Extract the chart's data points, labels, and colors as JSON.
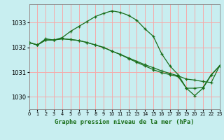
{
  "title": "Graphe pression niveau de la mer (hPa)",
  "background_color": "#c8eef0",
  "grid_color": "#f5aaaa",
  "line_color": "#1a6e1a",
  "xlim": [
    0,
    23
  ],
  "ylim": [
    1029.5,
    1033.75
  ],
  "yticks": [
    1030,
    1031,
    1032,
    1033
  ],
  "xticks": [
    0,
    1,
    2,
    3,
    4,
    5,
    6,
    7,
    8,
    9,
    10,
    11,
    12,
    13,
    14,
    15,
    16,
    17,
    18,
    19,
    20,
    21,
    22,
    23
  ],
  "series": [
    {
      "x": [
        0,
        1,
        2,
        3,
        4,
        5,
        6,
        7,
        8,
        9,
        10,
        11,
        12,
        13,
        14,
        15,
        16,
        17,
        18,
        19,
        20,
        21,
        22,
        23
      ],
      "y": [
        1032.2,
        1032.1,
        1032.35,
        1032.3,
        1032.4,
        1032.65,
        1032.85,
        1033.05,
        1033.25,
        1033.38,
        1033.48,
        1033.42,
        1033.3,
        1033.1,
        1032.75,
        1032.45,
        1031.75,
        1031.25,
        1030.9,
        1030.35,
        1030.35,
        1030.38,
        1030.9,
        1031.25
      ]
    },
    {
      "x": [
        0,
        1,
        2,
        3,
        4,
        5,
        6,
        7,
        8,
        9,
        10,
        11,
        12,
        13,
        14,
        15,
        16,
        17,
        18,
        19,
        20,
        21,
        22,
        23
      ],
      "y": [
        1032.2,
        1032.1,
        1032.3,
        1032.3,
        1032.35,
        1032.32,
        1032.28,
        1032.2,
        1032.1,
        1032.0,
        1031.85,
        1031.72,
        1031.58,
        1031.44,
        1031.3,
        1031.18,
        1031.05,
        1030.95,
        1030.85,
        1030.72,
        1030.68,
        1030.62,
        1030.58,
        1031.25
      ]
    },
    {
      "x": [
        0,
        1,
        2,
        3,
        4,
        5,
        6,
        7,
        8,
        9,
        10,
        11,
        12,
        13,
        14,
        15,
        16,
        17,
        18,
        19,
        20,
        21,
        22,
        23
      ],
      "y": [
        1032.2,
        1032.1,
        1032.3,
        1032.3,
        1032.35,
        1032.32,
        1032.28,
        1032.2,
        1032.1,
        1032.0,
        1031.85,
        1031.72,
        1031.55,
        1031.4,
        1031.25,
        1031.1,
        1030.98,
        1030.9,
        1030.82,
        1030.35,
        1030.05,
        1030.35,
        1030.88,
        1031.25
      ]
    }
  ]
}
